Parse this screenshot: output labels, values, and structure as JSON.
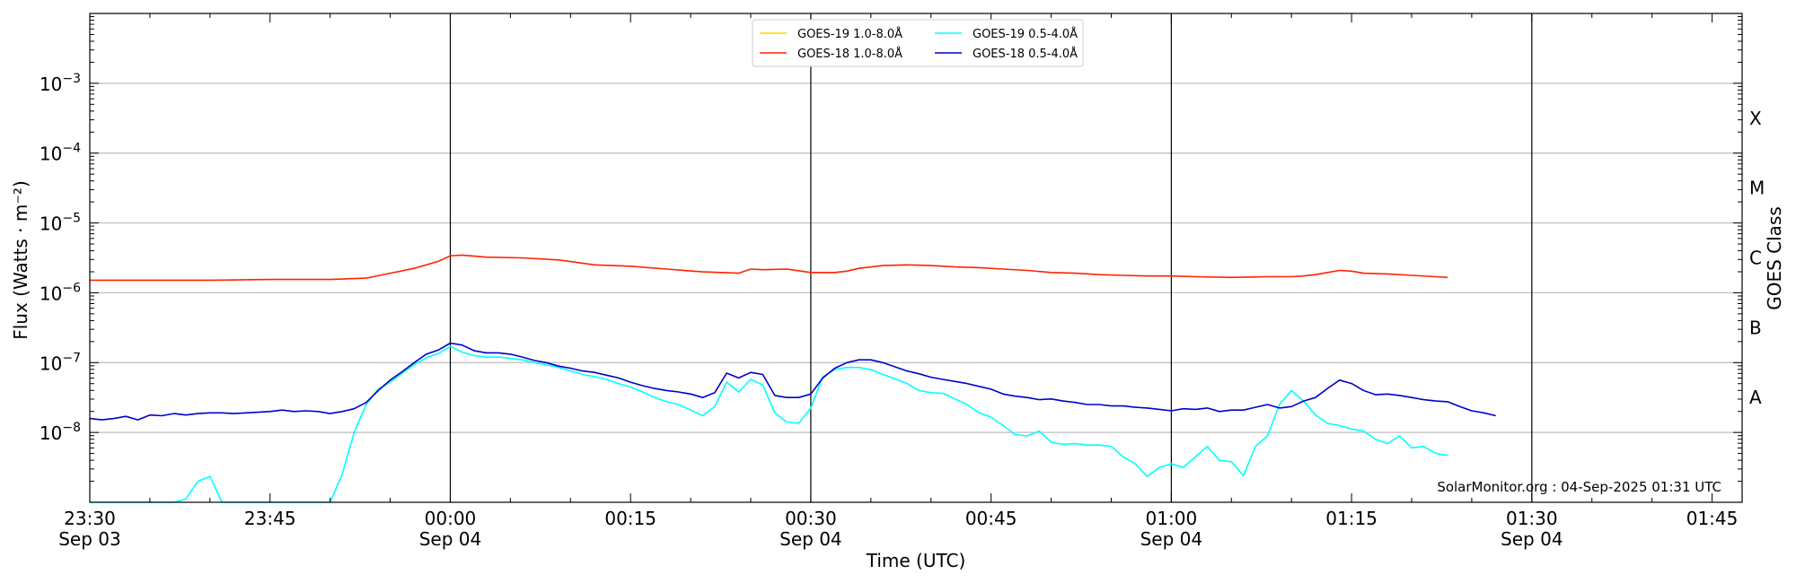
{
  "chart_data": {
    "type": "line",
    "title": "",
    "xlabel": "Time (UTC)",
    "ylabel": "Flux (Watts · m⁻²)",
    "right_label": "GOES Class",
    "watermark": "SolarMonitor.org : 04-Sep-2025 01:31 UTC",
    "x_unit": "minutes since 23:30 Sep 03",
    "xlim": [
      0,
      137.5
    ],
    "ylim": [
      1e-09,
      0.01
    ],
    "yscale": "log",
    "grid": "horizontal at decades",
    "legend_position": "top-center",
    "x_ticks": [
      {
        "x": 0,
        "line1": "23:30",
        "line2": "Sep 03"
      },
      {
        "x": 15,
        "line1": "23:45",
        "line2": ""
      },
      {
        "x": 30,
        "line1": "00:00",
        "line2": "Sep 04"
      },
      {
        "x": 45,
        "line1": "00:15",
        "line2": ""
      },
      {
        "x": 60,
        "line1": "00:30",
        "line2": "Sep 04"
      },
      {
        "x": 75,
        "line1": "00:45",
        "line2": ""
      },
      {
        "x": 90,
        "line1": "01:00",
        "line2": "Sep 04"
      },
      {
        "x": 105,
        "line1": "01:15",
        "line2": ""
      },
      {
        "x": 120,
        "line1": "01:30",
        "line2": "Sep 04"
      },
      {
        "x": 135,
        "line1": "01:45",
        "line2": ""
      }
    ],
    "y_ticks": [
      {
        "exp": -8,
        "label": "10",
        "sup": "−8"
      },
      {
        "exp": -7,
        "label": "10",
        "sup": "−7"
      },
      {
        "exp": -6,
        "label": "10",
        "sup": "−6"
      },
      {
        "exp": -5,
        "label": "10",
        "sup": "−5"
      },
      {
        "exp": -4,
        "label": "10",
        "sup": "−4"
      },
      {
        "exp": -3,
        "label": "10",
        "sup": "−3"
      }
    ],
    "vlines": [
      30,
      60,
      90,
      120
    ],
    "goes_classes": [
      {
        "label": "A",
        "exp": -7.5
      },
      {
        "label": "B",
        "exp": -6.5
      },
      {
        "label": "C",
        "exp": -5.5
      },
      {
        "label": "M",
        "exp": -4.5
      },
      {
        "label": "X",
        "exp": -3.5
      }
    ],
    "series": [
      {
        "name": "GOES-19 1.0-8.0Å",
        "color": "#FFD700",
        "points": []
      },
      {
        "name": "GOES-19 0.5-4.0Å",
        "color": "#00FFFF",
        "points": [
          [
            0,
            -9
          ],
          [
            7,
            -9
          ],
          [
            8,
            -8.95
          ],
          [
            9,
            -8.7
          ],
          [
            10,
            -8.63
          ],
          [
            11,
            -9
          ],
          [
            20,
            -9
          ],
          [
            21,
            -8.6
          ],
          [
            22,
            -8.0
          ],
          [
            23,
            -7.6
          ],
          [
            24,
            -7.38
          ],
          [
            25,
            -7.28
          ],
          [
            26,
            -7.15
          ],
          [
            27,
            -7.03
          ],
          [
            28,
            -6.93
          ],
          [
            29,
            -6.87
          ],
          [
            30,
            -6.77
          ],
          [
            31,
            -6.85
          ],
          [
            32,
            -6.9
          ],
          [
            33,
            -6.92
          ],
          [
            34,
            -6.92
          ],
          [
            35,
            -6.94
          ],
          [
            36,
            -6.96
          ],
          [
            37,
            -7.0
          ],
          [
            38,
            -7.03
          ],
          [
            39,
            -7.07
          ],
          [
            40,
            -7.12
          ],
          [
            41,
            -7.17
          ],
          [
            42,
            -7.2
          ],
          [
            43,
            -7.24
          ],
          [
            44,
            -7.3
          ],
          [
            45,
            -7.35
          ],
          [
            46,
            -7.42
          ],
          [
            47,
            -7.5
          ],
          [
            48,
            -7.56
          ],
          [
            49,
            -7.6
          ],
          [
            50,
            -7.68
          ],
          [
            51,
            -7.76
          ],
          [
            52,
            -7.63
          ],
          [
            53,
            -7.28
          ],
          [
            54,
            -7.42
          ],
          [
            55,
            -7.24
          ],
          [
            56,
            -7.32
          ],
          [
            57,
            -7.72
          ],
          [
            58,
            -7.85
          ],
          [
            59,
            -7.87
          ],
          [
            60,
            -7.65
          ],
          [
            61,
            -7.2
          ],
          [
            62,
            -7.1
          ],
          [
            63,
            -7.07
          ],
          [
            64,
            -7.07
          ],
          [
            65,
            -7.1
          ],
          [
            66,
            -7.17
          ],
          [
            67,
            -7.23
          ],
          [
            68,
            -7.3
          ],
          [
            69,
            -7.4
          ],
          [
            70,
            -7.43
          ],
          [
            71,
            -7.44
          ],
          [
            72,
            -7.52
          ],
          [
            73,
            -7.6
          ],
          [
            74,
            -7.72
          ],
          [
            75,
            -7.78
          ],
          [
            76,
            -7.9
          ],
          [
            77,
            -8.03
          ],
          [
            78,
            -8.05
          ],
          [
            79,
            -7.98
          ],
          [
            80,
            -8.14
          ],
          [
            81,
            -8.17
          ],
          [
            82,
            -8.16
          ],
          [
            83,
            -8.18
          ],
          [
            84,
            -8.18
          ],
          [
            85,
            -8.2
          ],
          [
            86,
            -8.35
          ],
          [
            87,
            -8.45
          ],
          [
            88,
            -8.63
          ],
          [
            89,
            -8.5
          ],
          [
            90,
            -8.45
          ],
          [
            91,
            -8.5
          ],
          [
            92,
            -8.35
          ],
          [
            93,
            -8.2
          ],
          [
            94,
            -8.4
          ],
          [
            95,
            -8.42
          ],
          [
            96,
            -8.62
          ],
          [
            97,
            -8.2
          ],
          [
            98,
            -8.05
          ],
          [
            99,
            -7.6
          ],
          [
            100,
            -7.4
          ],
          [
            101,
            -7.55
          ],
          [
            102,
            -7.75
          ],
          [
            103,
            -7.87
          ],
          [
            104,
            -7.9
          ],
          [
            105,
            -7.95
          ],
          [
            106,
            -7.98
          ],
          [
            107,
            -8.1
          ],
          [
            108,
            -8.16
          ],
          [
            109,
            -8.05
          ],
          [
            110,
            -8.22
          ],
          [
            111,
            -8.2
          ],
          [
            112,
            -8.3
          ],
          [
            113,
            -8.33
          ]
        ]
      },
      {
        "name": "GOES-18 1.0-8.0Å",
        "color": "#FF2200",
        "points": [
          [
            0,
            -5.82
          ],
          [
            10,
            -5.82
          ],
          [
            15,
            -5.81
          ],
          [
            20,
            -5.81
          ],
          [
            23,
            -5.79
          ],
          [
            25,
            -5.72
          ],
          [
            27,
            -5.65
          ],
          [
            29,
            -5.55
          ],
          [
            30,
            -5.47
          ],
          [
            31,
            -5.46
          ],
          [
            33,
            -5.49
          ],
          [
            36,
            -5.5
          ],
          [
            39,
            -5.53
          ],
          [
            42,
            -5.6
          ],
          [
            45,
            -5.62
          ],
          [
            48,
            -5.66
          ],
          [
            51,
            -5.7
          ],
          [
            54,
            -5.72
          ],
          [
            55,
            -5.66
          ],
          [
            56,
            -5.67
          ],
          [
            58,
            -5.66
          ],
          [
            60,
            -5.71
          ],
          [
            62,
            -5.71
          ],
          [
            63,
            -5.69
          ],
          [
            64,
            -5.65
          ],
          [
            66,
            -5.61
          ],
          [
            68,
            -5.6
          ],
          [
            70,
            -5.61
          ],
          [
            72,
            -5.63
          ],
          [
            74,
            -5.64
          ],
          [
            76,
            -5.66
          ],
          [
            78,
            -5.68
          ],
          [
            80,
            -5.71
          ],
          [
            82,
            -5.72
          ],
          [
            84,
            -5.74
          ],
          [
            86,
            -5.75
          ],
          [
            88,
            -5.76
          ],
          [
            90,
            -5.76
          ],
          [
            92,
            -5.77
          ],
          [
            95,
            -5.78
          ],
          [
            98,
            -5.77
          ],
          [
            100,
            -5.77
          ],
          [
            101,
            -5.76
          ],
          [
            102,
            -5.74
          ],
          [
            103,
            -5.71
          ],
          [
            104,
            -5.68
          ],
          [
            105,
            -5.69
          ],
          [
            106,
            -5.72
          ],
          [
            108,
            -5.73
          ],
          [
            110,
            -5.75
          ],
          [
            112,
            -5.77
          ],
          [
            113,
            -5.78
          ]
        ]
      },
      {
        "name": "GOES-18 0.5-4.0Å",
        "color": "#0000CC",
        "points": [
          [
            0,
            -7.8
          ],
          [
            1,
            -7.82
          ],
          [
            2,
            -7.8
          ],
          [
            3,
            -7.77
          ],
          [
            4,
            -7.82
          ],
          [
            5,
            -7.75
          ],
          [
            6,
            -7.76
          ],
          [
            7,
            -7.73
          ],
          [
            8,
            -7.75
          ],
          [
            9,
            -7.73
          ],
          [
            10,
            -7.72
          ],
          [
            11,
            -7.72
          ],
          [
            12,
            -7.73
          ],
          [
            13,
            -7.72
          ],
          [
            14,
            -7.71
          ],
          [
            15,
            -7.7
          ],
          [
            16,
            -7.68
          ],
          [
            17,
            -7.7
          ],
          [
            18,
            -7.69
          ],
          [
            19,
            -7.7
          ],
          [
            20,
            -7.73
          ],
          [
            21,
            -7.7
          ],
          [
            22,
            -7.66
          ],
          [
            23,
            -7.57
          ],
          [
            24,
            -7.4
          ],
          [
            25,
            -7.25
          ],
          [
            26,
            -7.13
          ],
          [
            27,
            -7.0
          ],
          [
            28,
            -6.88
          ],
          [
            29,
            -6.82
          ],
          [
            30,
            -6.72
          ],
          [
            31,
            -6.75
          ],
          [
            32,
            -6.83
          ],
          [
            33,
            -6.86
          ],
          [
            34,
            -6.86
          ],
          [
            35,
            -6.88
          ],
          [
            36,
            -6.92
          ],
          [
            37,
            -6.97
          ],
          [
            38,
            -7.0
          ],
          [
            39,
            -7.05
          ],
          [
            40,
            -7.08
          ],
          [
            41,
            -7.12
          ],
          [
            42,
            -7.14
          ],
          [
            43,
            -7.18
          ],
          [
            44,
            -7.22
          ],
          [
            45,
            -7.28
          ],
          [
            46,
            -7.33
          ],
          [
            47,
            -7.37
          ],
          [
            48,
            -7.4
          ],
          [
            49,
            -7.42
          ],
          [
            50,
            -7.45
          ],
          [
            51,
            -7.5
          ],
          [
            52,
            -7.43
          ],
          [
            53,
            -7.15
          ],
          [
            54,
            -7.22
          ],
          [
            55,
            -7.14
          ],
          [
            56,
            -7.17
          ],
          [
            57,
            -7.47
          ],
          [
            58,
            -7.5
          ],
          [
            59,
            -7.5
          ],
          [
            60,
            -7.45
          ],
          [
            61,
            -7.22
          ],
          [
            62,
            -7.08
          ],
          [
            63,
            -7.0
          ],
          [
            64,
            -6.96
          ],
          [
            65,
            -6.96
          ],
          [
            66,
            -7.0
          ],
          [
            67,
            -7.06
          ],
          [
            68,
            -7.12
          ],
          [
            69,
            -7.16
          ],
          [
            70,
            -7.21
          ],
          [
            71,
            -7.24
          ],
          [
            72,
            -7.27
          ],
          [
            73,
            -7.3
          ],
          [
            74,
            -7.34
          ],
          [
            75,
            -7.38
          ],
          [
            76,
            -7.45
          ],
          [
            77,
            -7.48
          ],
          [
            78,
            -7.5
          ],
          [
            79,
            -7.53
          ],
          [
            80,
            -7.52
          ],
          [
            81,
            -7.55
          ],
          [
            82,
            -7.57
          ],
          [
            83,
            -7.6
          ],
          [
            84,
            -7.6
          ],
          [
            85,
            -7.62
          ],
          [
            86,
            -7.62
          ],
          [
            87,
            -7.64
          ],
          [
            88,
            -7.65
          ],
          [
            89,
            -7.67
          ],
          [
            90,
            -7.69
          ],
          [
            91,
            -7.66
          ],
          [
            92,
            -7.67
          ],
          [
            93,
            -7.65
          ],
          [
            94,
            -7.7
          ],
          [
            95,
            -7.68
          ],
          [
            96,
            -7.68
          ],
          [
            97,
            -7.64
          ],
          [
            98,
            -7.6
          ],
          [
            99,
            -7.65
          ],
          [
            100,
            -7.63
          ],
          [
            101,
            -7.55
          ],
          [
            102,
            -7.5
          ],
          [
            103,
            -7.37
          ],
          [
            104,
            -7.25
          ],
          [
            105,
            -7.3
          ],
          [
            106,
            -7.4
          ],
          [
            107,
            -7.46
          ],
          [
            108,
            -7.45
          ],
          [
            109,
            -7.47
          ],
          [
            110,
            -7.5
          ],
          [
            111,
            -7.53
          ],
          [
            112,
            -7.55
          ],
          [
            113,
            -7.56
          ],
          [
            114,
            -7.63
          ],
          [
            115,
            -7.69
          ],
          [
            116,
            -7.72
          ],
          [
            117,
            -7.76
          ]
        ]
      }
    ]
  }
}
